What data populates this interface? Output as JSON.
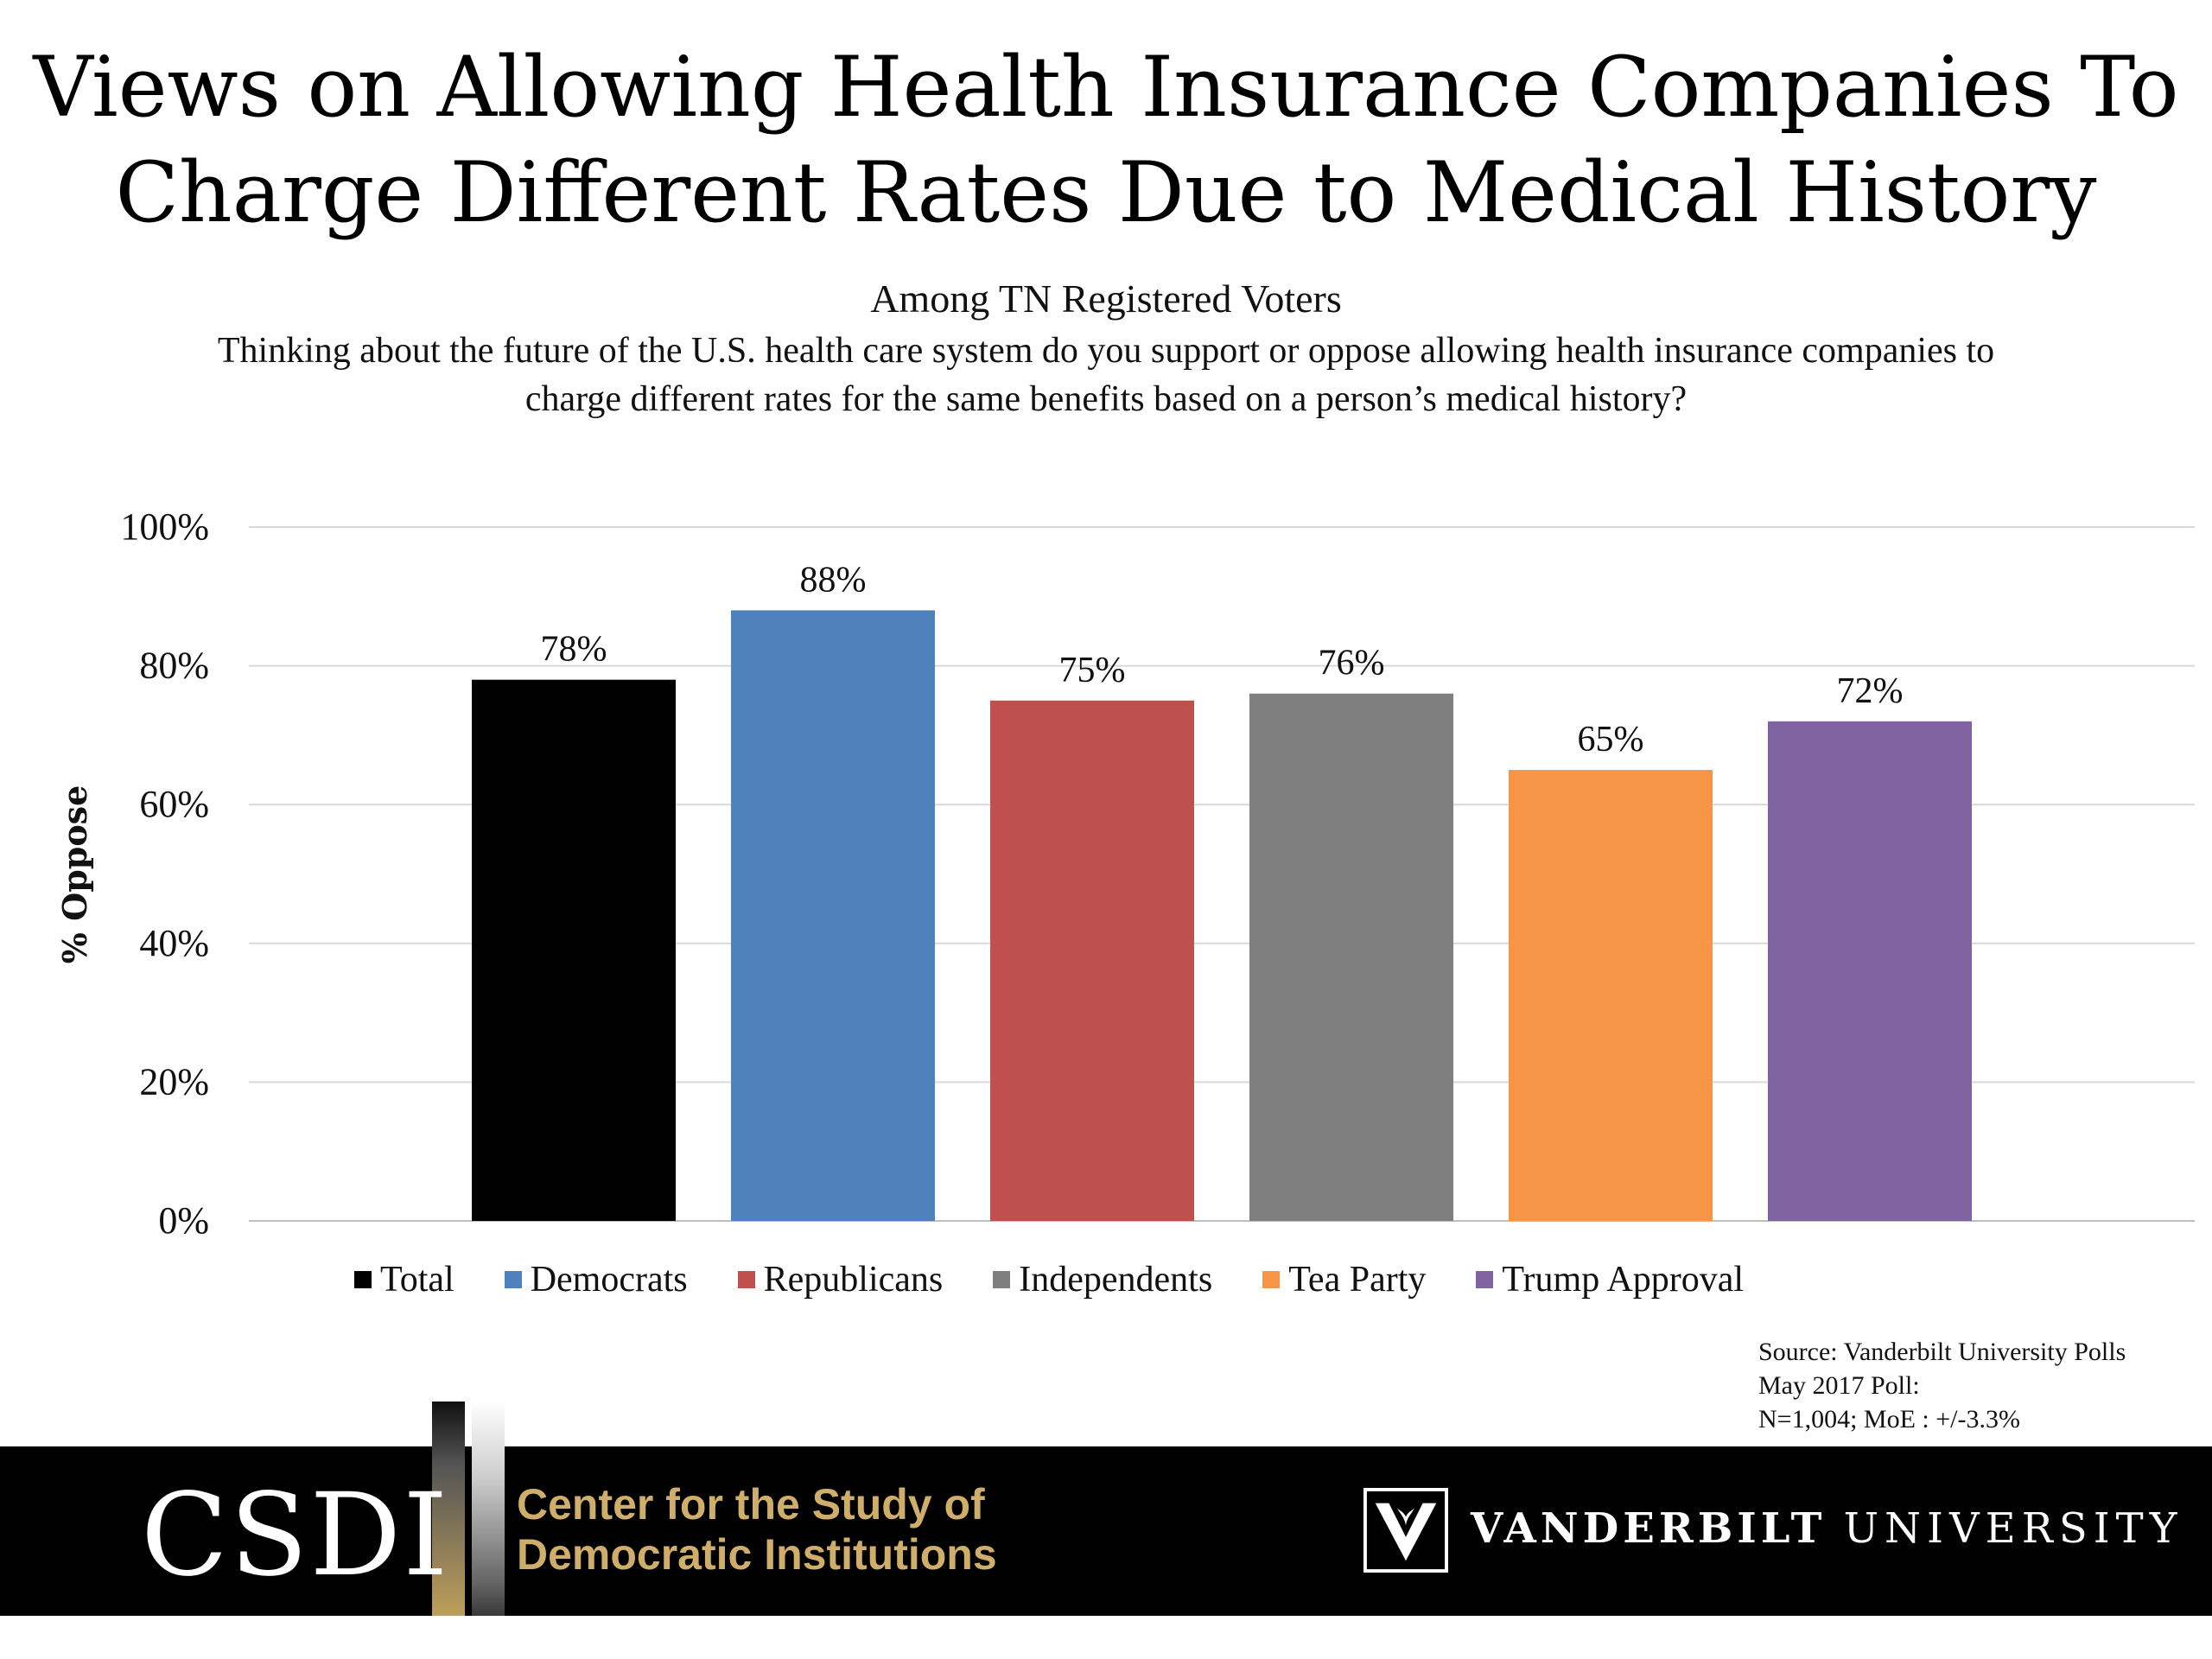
{
  "title": {
    "line1": "Views on Allowing Health Insurance Companies To",
    "line2": "Charge Different Rates Due to Medical History"
  },
  "subtitle": "Among TN Registered Voters",
  "question": {
    "line1": "Thinking about the future of the U.S. health care system do you support or oppose allowing health insurance companies to",
    "line2": "charge different rates for the same benefits based on a person’s medical history?"
  },
  "chart_data": {
    "type": "bar",
    "title": "Views on Allowing Health Insurance Companies To Charge Different Rates Due to Medical History",
    "ylabel": "% Oppose",
    "xlabel": "",
    "ylim": [
      0,
      100
    ],
    "yticks": [
      "0%",
      "20%",
      "40%",
      "60%",
      "80%",
      "100%"
    ],
    "grid": true,
    "legend": "bottom",
    "series": [
      {
        "name": "Total",
        "value": 78,
        "label": "78%",
        "color": "#000000"
      },
      {
        "name": "Democrats",
        "value": 88,
        "label": "88%",
        "color": "#4f81bd"
      },
      {
        "name": "Republicans",
        "value": 75,
        "label": "75%",
        "color": "#c0504d"
      },
      {
        "name": "Independents",
        "value": 76,
        "label": "76%",
        "color": "#7f7f7f"
      },
      {
        "name": "Tea Party",
        "value": 65,
        "label": "65%",
        "color": "#f79646"
      },
      {
        "name": "Trump Approval",
        "value": 72,
        "label": "72%",
        "color": "#8064a2"
      }
    ]
  },
  "source": {
    "line1": "Source: Vanderbilt University Polls",
    "line2": "May 2017 Poll:",
    "line3": "N=1,004; MoE : +/-3.3%"
  },
  "footer": {
    "csdi": "CSDI",
    "center_line1": "Center for the Study of",
    "center_line2": "Democratic Institutions",
    "vu_bold": "VANDERBILT",
    "vu_light": "UNIVERSITY",
    "shield_icon": "vanderbilt-shield-icon"
  }
}
